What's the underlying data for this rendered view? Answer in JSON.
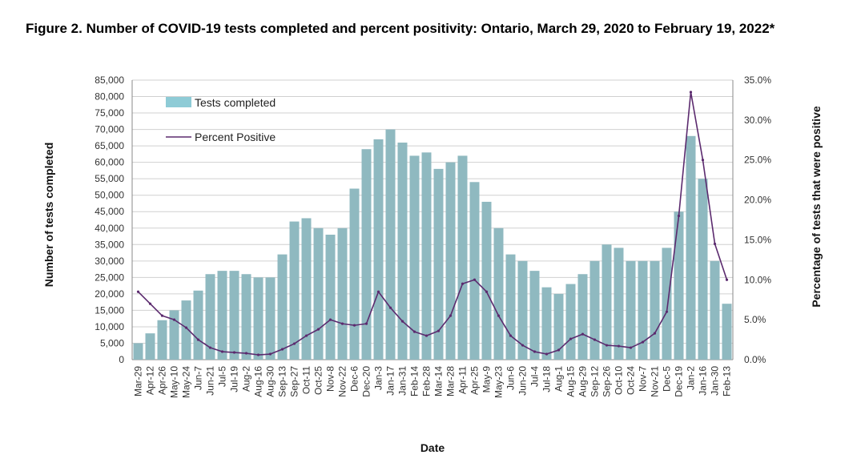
{
  "figure_title": "Figure 2. Number of COVID-19 tests completed and percent positivity: Ontario, March 29, 2020 to February 19, 2022*",
  "colors": {
    "bars": "#8fb9c0",
    "bars_legend": "#8ecbd6",
    "line": "#5b2a6e",
    "grid": "#d0d0d0"
  },
  "chart_data": {
    "type": "bar",
    "title": "Figure 2. Number of COVID-19 tests completed and percent positivity: Ontario, March 29, 2020 to February 19, 2022*",
    "xlabel": "Date",
    "ylabel": "Number of tests completed",
    "y2label": "Percentage of tests that were positive",
    "ylim": [
      0,
      85000
    ],
    "y2lim": [
      0,
      35
    ],
    "yticks": [
      "0",
      "5,000",
      "10,000",
      "15,000",
      "20,000",
      "25,000",
      "30,000",
      "35,000",
      "40,000",
      "45,000",
      "50,000",
      "55,000",
      "60,000",
      "65,000",
      "70,000",
      "75,000",
      "80,000",
      "85,000"
    ],
    "y2ticks": [
      "0.0%",
      "5.0%",
      "10.0%",
      "15.0%",
      "20.0%",
      "25.0%",
      "30.0%",
      "35.0%"
    ],
    "categories": [
      "Mar-29",
      "Apr-12",
      "Apr-26",
      "May-10",
      "May-24",
      "Jun-7",
      "Jun-21",
      "Jul-5",
      "Jul-19",
      "Aug-2",
      "Aug-16",
      "Aug-30",
      "Sep-13",
      "Sep-27",
      "Oct-11",
      "Oct-25",
      "Nov-8",
      "Nov-22",
      "Dec-6",
      "Dec-20",
      "Jan-3",
      "Jan-17",
      "Jan-31",
      "Feb-14",
      "Feb-28",
      "Mar-14",
      "Mar-28",
      "Apr-11",
      "Apr-25",
      "May-9",
      "May-23",
      "Jun-6",
      "Jun-20",
      "Jul-4",
      "Jul-18",
      "Aug-1",
      "Aug-15",
      "Aug-29",
      "Sep-12",
      "Sep-26",
      "Oct-10",
      "Oct-24",
      "Nov-7",
      "Nov-21",
      "Dec-5",
      "Dec-19",
      "Jan-2",
      "Jan-16",
      "Jan-30",
      "Feb-13"
    ],
    "legend": {
      "position": "top-left",
      "entries": [
        "Tests completed",
        "Percent Positive"
      ]
    },
    "grid": true,
    "series": [
      {
        "name": "Tests completed",
        "axis": "left",
        "kind": "bar",
        "values": [
          5000,
          8000,
          12000,
          15000,
          18000,
          21000,
          26000,
          27000,
          27000,
          26000,
          25000,
          25000,
          32000,
          42000,
          43000,
          40000,
          38000,
          40000,
          52000,
          64000,
          67000,
          70000,
          66000,
          62000,
          63000,
          58000,
          60000,
          62000,
          54000,
          48000,
          40000,
          32000,
          30000,
          27000,
          22000,
          20000,
          23000,
          26000,
          30000,
          35000,
          34000,
          30000,
          30000,
          30000,
          34000,
          45000,
          68000,
          55000,
          30000,
          17000
        ]
      },
      {
        "name": "Percent Positive",
        "axis": "right",
        "kind": "line",
        "values": [
          8.5,
          7.0,
          5.5,
          5.0,
          4.0,
          2.5,
          1.5,
          1.0,
          0.9,
          0.8,
          0.6,
          0.7,
          1.3,
          2.0,
          3.0,
          3.8,
          5.0,
          4.5,
          4.3,
          4.5,
          8.5,
          6.5,
          4.8,
          3.5,
          3.0,
          3.6,
          5.5,
          9.5,
          10.0,
          8.5,
          5.5,
          3.0,
          1.8,
          1.0,
          0.7,
          1.2,
          2.6,
          3.2,
          2.5,
          1.8,
          1.7,
          1.5,
          2.2,
          3.3,
          6.0,
          18.0,
          33.5,
          25.0,
          14.5,
          10.0
        ]
      }
    ]
  }
}
